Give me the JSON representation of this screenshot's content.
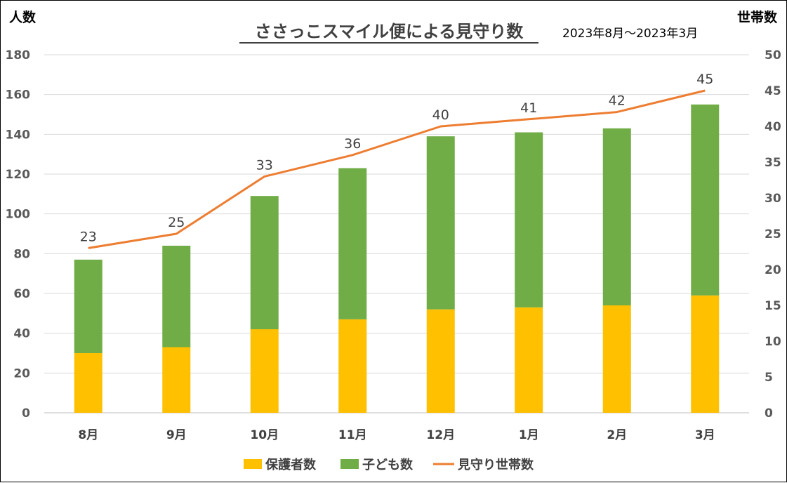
{
  "chart_data": {
    "type": "bar",
    "title": "ささっこスマイル便による見守り数",
    "subtitle": "2023年8月～2023年3月",
    "ylabel_left": "人数",
    "ylabel_right": "世帯数",
    "categories": [
      "8月",
      "9月",
      "10月",
      "11月",
      "12月",
      "1月",
      "2月",
      "3月"
    ],
    "ylim_left": [
      0,
      180
    ],
    "yticks_left": [
      0,
      20,
      40,
      60,
      80,
      100,
      120,
      140,
      160,
      180
    ],
    "ylim_right": [
      0,
      50
    ],
    "yticks_right": [
      0,
      5,
      10,
      15,
      20,
      25,
      30,
      35,
      40,
      45,
      50
    ],
    "grid": true,
    "stacked": true,
    "series": [
      {
        "name": "保護者数",
        "type": "bar",
        "axis": "left",
        "color": "#FFC000",
        "values": [
          30,
          33,
          42,
          47,
          52,
          53,
          54,
          59
        ]
      },
      {
        "name": "子ども数",
        "type": "bar",
        "axis": "left",
        "color": "#70AD47",
        "values": [
          47,
          51,
          67,
          76,
          87,
          88,
          89,
          96
        ]
      },
      {
        "name": "見守り世帯数",
        "type": "line",
        "axis": "right",
        "color": "#ED7D31",
        "values": [
          23,
          25,
          33,
          36,
          40,
          41,
          42,
          45
        ],
        "labels": [
          "23",
          "25",
          "33",
          "36",
          "40",
          "41",
          "42",
          "45"
        ]
      }
    ],
    "legend_position": "bottom"
  }
}
